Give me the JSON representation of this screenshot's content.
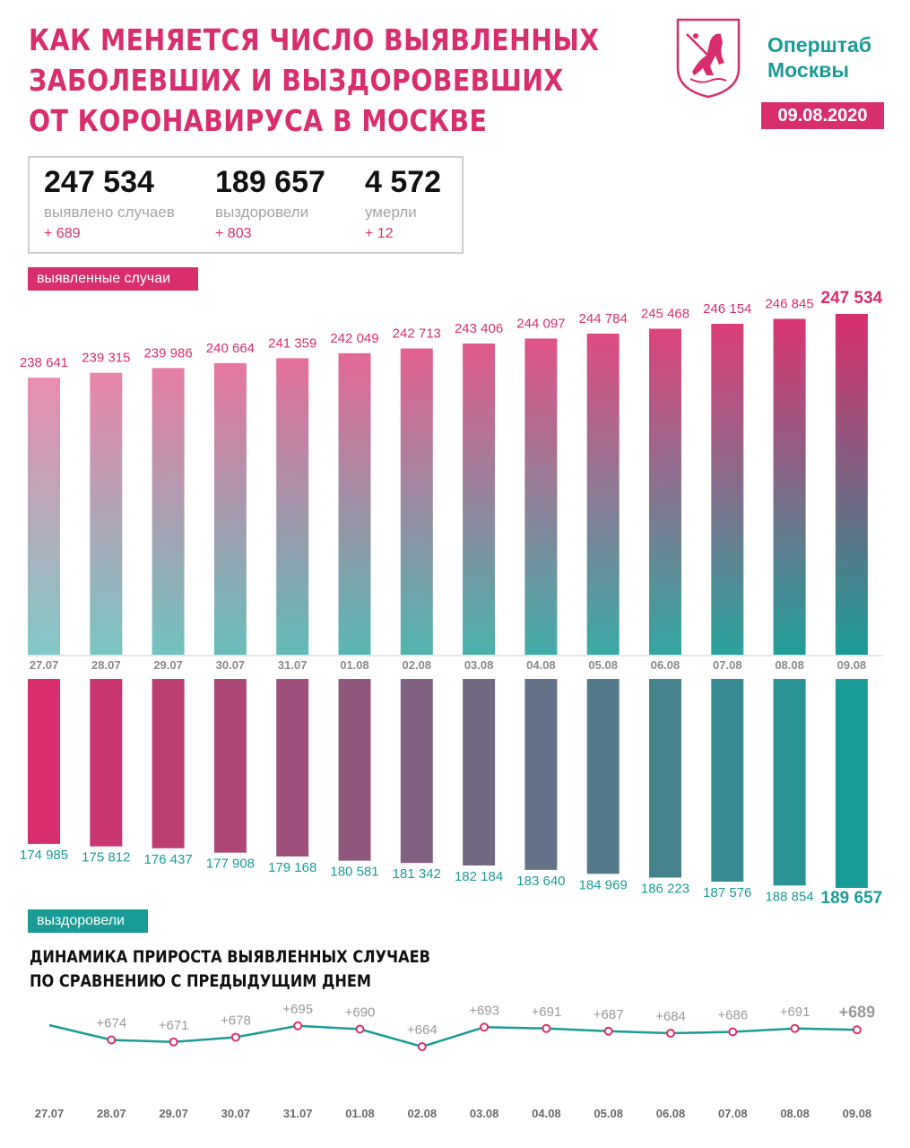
{
  "header": {
    "title_lines": [
      "КАК МЕНЯЕТСЯ ЧИСЛО ВЫЯВЛЕННЫХ",
      "ЗАБОЛЕВШИХ И ВЫЗДОРОВЕВШИХ",
      "ОТ КОРОНАВИРУСА В МОСКВЕ"
    ],
    "brand_line1": "Оперштаб",
    "brand_line2": "Москвы",
    "date": "09.08.2020",
    "emblem_icon": "moscow-coat-of-arms-icon"
  },
  "summary": {
    "cases": {
      "value": "247 534",
      "label": "выявлено случаев",
      "delta": "+ 689"
    },
    "recovered": {
      "value": "189 657",
      "label": "выздоровели",
      "delta": "+ 803"
    },
    "deaths": {
      "value": "4 572",
      "label": "умерли",
      "delta": "+ 12"
    }
  },
  "colors": {
    "accent_pink": "#d92e6e",
    "accent_teal": "#1a9c96"
  },
  "chart_data": [
    {
      "type": "bar",
      "legend_label": "выявленные случаи",
      "categories": [
        "27.07",
        "28.07",
        "29.07",
        "30.07",
        "31.07",
        "01.08",
        "02.08",
        "03.08",
        "04.08",
        "05.08",
        "06.08",
        "07.08",
        "08.08",
        "09.08"
      ],
      "values": [
        238641,
        239315,
        239986,
        240664,
        241359,
        242049,
        242713,
        243406,
        244097,
        244784,
        245468,
        246154,
        246845,
        247534
      ],
      "labels": [
        "238 641",
        "239 315",
        "239 986",
        "240 664",
        "241 359",
        "242 049",
        "242 713",
        "243 406",
        "244 097",
        "244 784",
        "245 468",
        "246 154",
        "246 845",
        "247 534"
      ]
    },
    {
      "type": "bar",
      "legend_label": "выздоровели",
      "categories": [
        "27.07",
        "28.07",
        "29.07",
        "30.07",
        "31.07",
        "01.08",
        "02.08",
        "03.08",
        "04.08",
        "05.08",
        "06.08",
        "07.08",
        "08.08",
        "09.08"
      ],
      "values": [
        174985,
        175812,
        176437,
        177908,
        179168,
        180581,
        181342,
        182184,
        183640,
        184969,
        186223,
        187576,
        188854,
        189657
      ],
      "labels": [
        "174 985",
        "175 812",
        "176 437",
        "177 908",
        "179 168",
        "180 581",
        "181 342",
        "182 184",
        "183 640",
        "184 969",
        "186 223",
        "187 576",
        "188 854",
        "189 657"
      ]
    },
    {
      "type": "line",
      "title_lines": [
        "ДИНАМИКА ПРИРОСТА ВЫЯВЛЕННЫХ СЛУЧАЕВ",
        "ПО СРАВНЕНИЮ С ПРЕДЫДУЩИМ ДНЕМ"
      ],
      "categories": [
        "27.07",
        "28.07",
        "29.07",
        "30.07",
        "31.07",
        "01.08",
        "02.08",
        "03.08",
        "04.08",
        "05.08",
        "06.08",
        "07.08",
        "08.08",
        "09.08"
      ],
      "values": [
        null,
        674,
        671,
        678,
        695,
        690,
        664,
        693,
        691,
        687,
        684,
        686,
        691,
        689
      ],
      "labels": [
        "",
        "+674",
        "+671",
        "+678",
        "+695",
        "+690",
        "+664",
        "+693",
        "+691",
        "+687",
        "+684",
        "+686",
        "+691",
        "+689"
      ]
    }
  ]
}
